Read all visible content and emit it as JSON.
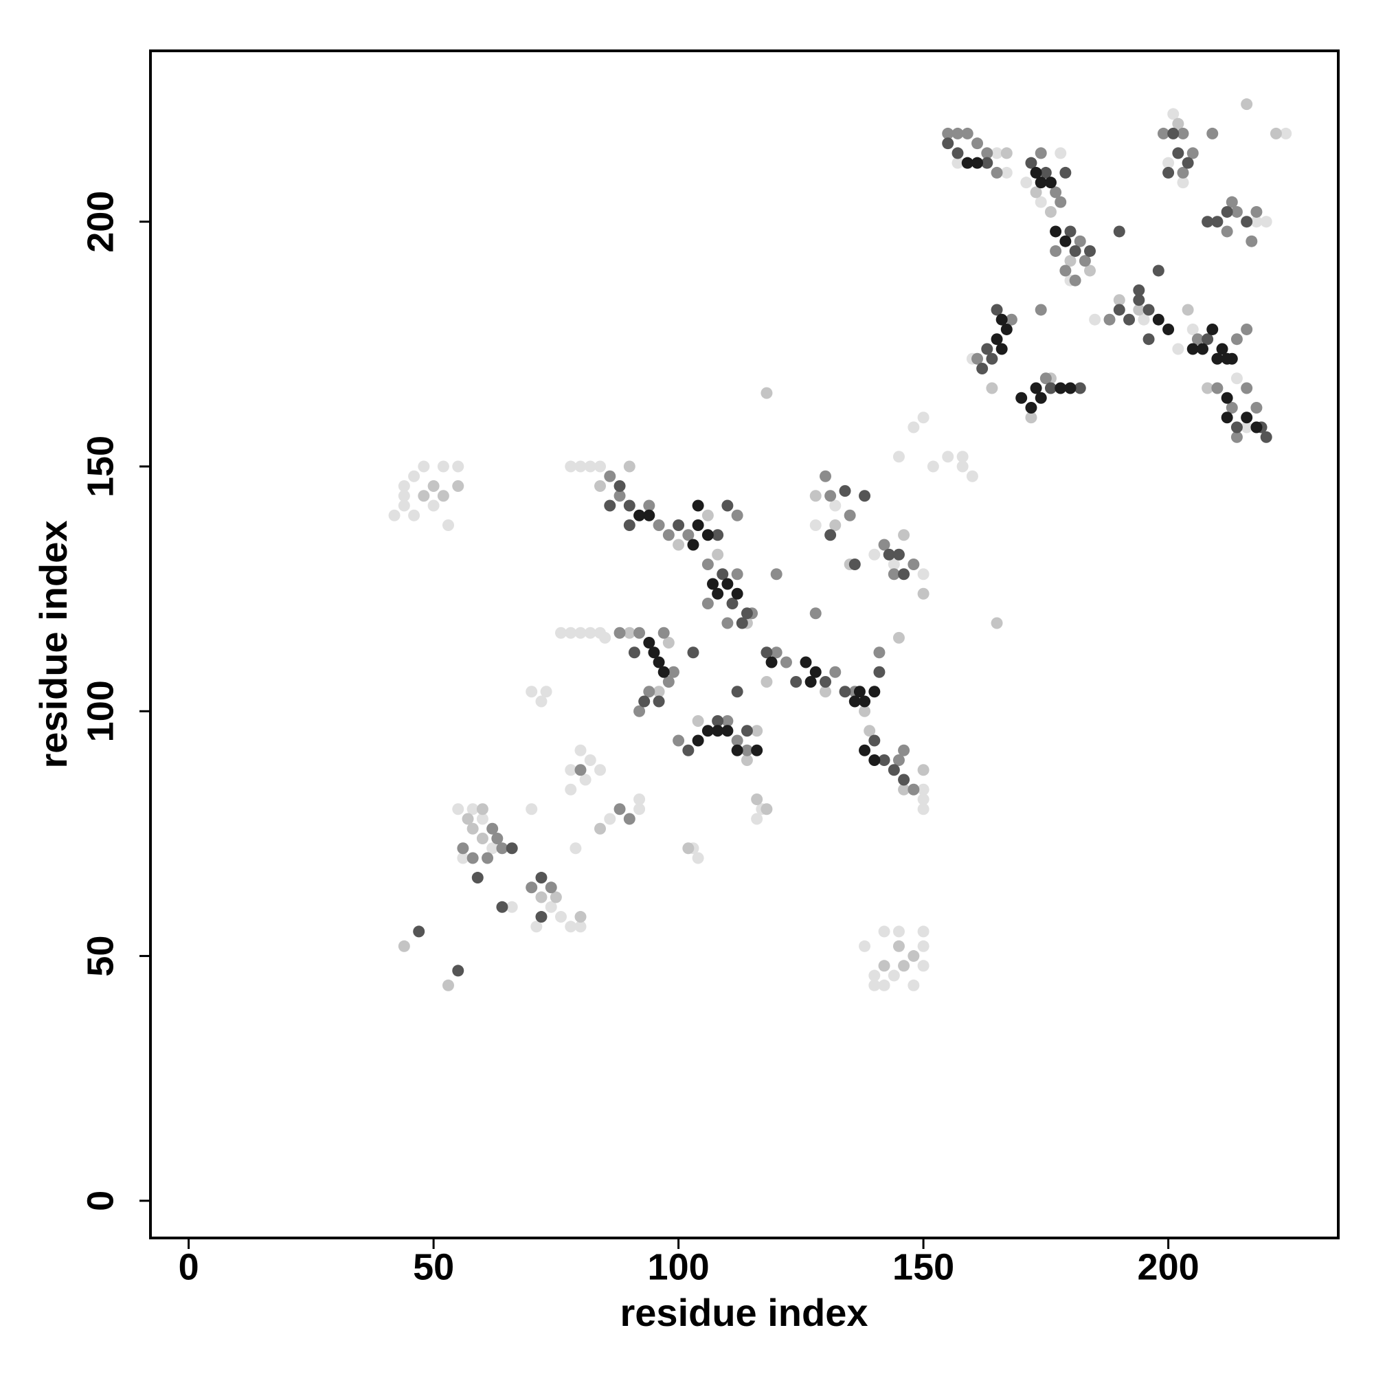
{
  "chart_data": {
    "type": "scatter",
    "x_label": "residue index",
    "y_label": "residue index",
    "xlim": [
      -7.8,
      234.7
    ],
    "ylim": [
      -7.6,
      234.9
    ],
    "xticks": [
      0,
      50,
      100,
      150,
      200
    ],
    "yticks": [
      0,
      50,
      100,
      150,
      200
    ],
    "series": [
      {
        "color": "#1c1c1c",
        "x": [
          159,
          161,
          173,
          174,
          176,
          179,
          177,
          166,
          167,
          165,
          166,
          173,
          172,
          178,
          180,
          209,
          210,
          211,
          212,
          213,
          212,
          212,
          216,
          218,
          92,
          94,
          103,
          104,
          106,
          104,
          107,
          108,
          110,
          112,
          94,
          95,
          96,
          97,
          104,
          106,
          108,
          110,
          112,
          116,
          119,
          126,
          127,
          128,
          136,
          137,
          138,
          140,
          138,
          140,
          170,
          174,
          205,
          207,
          200,
          198
        ],
        "values": [
          212,
          212,
          210,
          208,
          208,
          196,
          198,
          180,
          178,
          176,
          174,
          166,
          162,
          166,
          166,
          178,
          172,
          174,
          172,
          172,
          164,
          160,
          160,
          158,
          140,
          140,
          134,
          138,
          136,
          142,
          126,
          124,
          126,
          124,
          114,
          112,
          110,
          108,
          94,
          96,
          96,
          96,
          92,
          92,
          110,
          110,
          106,
          108,
          102,
          104,
          102,
          104,
          92,
          90,
          164,
          164,
          174,
          174,
          178,
          180
        ]
      },
      {
        "color": "#555555",
        "x": [
          155,
          157,
          163,
          172,
          175,
          179,
          181,
          180,
          163,
          162,
          164,
          165,
          176,
          182,
          208,
          196,
          194,
          196,
          212,
          216,
          219,
          220,
          214,
          88,
          90,
          86,
          90,
          100,
          108,
          110,
          109,
          111,
          113,
          114,
          134,
          138,
          131,
          136,
          143,
          145,
          146,
          91,
          93,
          96,
          103,
          112,
          102,
          108,
          114,
          118,
          124,
          130,
          134,
          141,
          140,
          142,
          144,
          146,
          47,
          55,
          66,
          72,
          59,
          64,
          72,
          202,
          204,
          200,
          210,
          208,
          201,
          190,
          192,
          194,
          198,
          190,
          184
        ],
        "values": [
          216,
          214,
          212,
          212,
          210,
          210,
          194,
          198,
          174,
          170,
          172,
          182,
          166,
          166,
          176,
          176,
          184,
          182,
          202,
          200,
          158,
          156,
          158,
          146,
          142,
          142,
          138,
          138,
          136,
          142,
          128,
          122,
          118,
          120,
          145,
          144,
          136,
          130,
          132,
          132,
          128,
          112,
          102,
          102,
          112,
          104,
          92,
          98,
          96,
          112,
          106,
          106,
          104,
          108,
          94,
          90,
          88,
          86,
          55,
          47,
          72,
          66,
          66,
          60,
          58,
          214,
          212,
          210,
          200,
          200,
          218,
          182,
          180,
          186,
          190,
          198,
          194
        ]
      },
      {
        "color": "#8c8c8c",
        "x": [
          155,
          157,
          159,
          161,
          163,
          165,
          174,
          177,
          178,
          182,
          183,
          179,
          181,
          177,
          168,
          161,
          174,
          175,
          203,
          203,
          205,
          199,
          212,
          214,
          218,
          217,
          209,
          213,
          188,
          206,
          214,
          216,
          210,
          213,
          218,
          216,
          214,
          86,
          88,
          94,
          96,
          98,
          102,
          112,
          106,
          112,
          115,
          106,
          110,
          130,
          131,
          135,
          142,
          148,
          144,
          120,
          128,
          88,
          92,
          97,
          98,
          94,
          92,
          99,
          100,
          112,
          114,
          110,
          120,
          122,
          132,
          141,
          136,
          145,
          146,
          148,
          70,
          74,
          62,
          63,
          64,
          58,
          61,
          56,
          88,
          90,
          80
        ],
        "values": [
          218,
          218,
          218,
          216,
          214,
          210,
          214,
          206,
          204,
          196,
          192,
          190,
          188,
          194,
          180,
          172,
          182,
          168,
          218,
          210,
          214,
          218,
          198,
          202,
          202,
          196,
          218,
          204,
          180,
          176,
          176,
          178,
          166,
          162,
          162,
          166,
          156,
          148,
          144,
          142,
          138,
          136,
          136,
          140,
          130,
          128,
          120,
          122,
          118,
          148,
          144,
          140,
          134,
          130,
          128,
          128,
          120,
          116,
          116,
          116,
          106,
          104,
          100,
          108,
          94,
          94,
          92,
          98,
          112,
          110,
          108,
          112,
          104,
          90,
          92,
          84,
          64,
          64,
          76,
          74,
          72,
          70,
          70,
          72,
          80,
          78,
          88
        ]
      },
      {
        "color": "#c4c4c4",
        "x": [
          167,
          173,
          176,
          180,
          184,
          202,
          216,
          222,
          194,
          190,
          204,
          208,
          164,
          176,
          172,
          90,
          84,
          100,
          106,
          108,
          114,
          128,
          132,
          135,
          146,
          150,
          145,
          165,
          118,
          90,
          98,
          96,
          104,
          116,
          114,
          118,
          130,
          138,
          139,
          150,
          146,
          58,
          60,
          57,
          60,
          72,
          75,
          80,
          44,
          53,
          48,
          50,
          52,
          55,
          142,
          146,
          148,
          145,
          116,
          118,
          102,
          84
        ],
        "values": [
          214,
          206,
          202,
          192,
          190,
          220,
          224,
          218,
          182,
          184,
          182,
          166,
          166,
          168,
          160,
          150,
          146,
          134,
          140,
          132,
          118,
          144,
          138,
          130,
          136,
          124,
          115,
          118,
          165,
          116,
          114,
          104,
          98,
          96,
          90,
          106,
          104,
          100,
          96,
          88,
          84,
          76,
          74,
          78,
          80,
          62,
          62,
          58,
          52,
          44,
          144,
          146,
          144,
          146,
          48,
          48,
          50,
          52,
          82,
          80,
          72,
          76
        ]
      },
      {
        "color": "#e0e0e0",
        "x": [
          157,
          165,
          167,
          171,
          174,
          178,
          180,
          201,
          200,
          203,
          224,
          218,
          220,
          185,
          195,
          205,
          202,
          214,
          216,
          160,
          150,
          148,
          152,
          155,
          158,
          158,
          160,
          145,
          80,
          82,
          84,
          78,
          128,
          132,
          140,
          144,
          150,
          80,
          82,
          84,
          85,
          78,
          76,
          70,
          72,
          73,
          82,
          78,
          84,
          81,
          78,
          80,
          92,
          92,
          86,
          116,
          117,
          104,
          103,
          55,
          58,
          60,
          62,
          56,
          70,
          74,
          76,
          78,
          80,
          71,
          66,
          79,
          42,
          44,
          44,
          46,
          48,
          50,
          52,
          55,
          53,
          46,
          44,
          140,
          142,
          144,
          145,
          148,
          150,
          150,
          150,
          142,
          138,
          140,
          150,
          150,
          150
        ],
        "values": [
          212,
          214,
          210,
          208,
          204,
          214,
          188,
          222,
          212,
          208,
          218,
          200,
          200,
          180,
          180,
          178,
          174,
          168,
          158,
          172,
          160,
          158,
          150,
          152,
          150,
          152,
          148,
          152,
          150,
          150,
          150,
          150,
          138,
          142,
          132,
          130,
          128,
          116,
          116,
          116,
          115,
          116,
          116,
          104,
          102,
          104,
          90,
          88,
          88,
          86,
          84,
          92,
          80,
          82,
          78,
          78,
          80,
          70,
          72,
          80,
          80,
          78,
          72,
          70,
          80,
          60,
          58,
          56,
          56,
          56,
          60,
          72,
          140,
          144,
          146,
          148,
          150,
          142,
          150,
          150,
          138,
          140,
          142,
          46,
          44,
          46,
          55,
          44,
          55,
          52,
          48,
          55,
          52,
          44,
          82,
          84,
          80
        ]
      }
    ]
  }
}
